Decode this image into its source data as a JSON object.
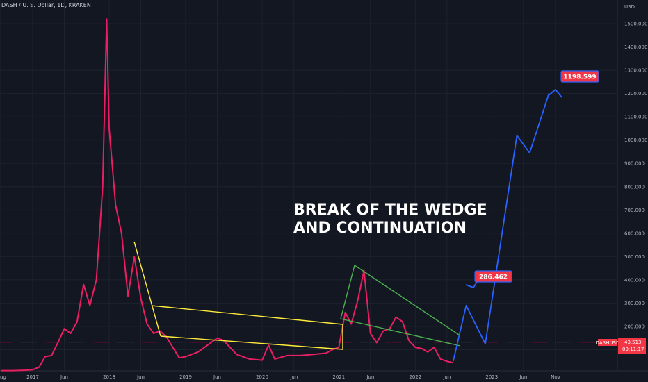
{
  "header": {
    "symbol_title": "DASH / U. S. Dollar, 1D, KRAKEN"
  },
  "annotation": {
    "line1": "BREAK OF THE WEDGE",
    "line2": "AND CONTINUATION"
  },
  "badges": {
    "target1": "286.462",
    "target2": "1198.599"
  },
  "price_label": {
    "ticker": "DASHUSD",
    "price": "43.513",
    "countdown": "09:11:17"
  },
  "colors": {
    "background": "#131722",
    "price_line": "#e91e63",
    "wedge_yellow": "#ffeb3b",
    "wedge_green": "#4caf50",
    "projection_blue": "#2962ff",
    "badge_red": "#f23645"
  },
  "chart_data": {
    "type": "line",
    "title": "DASH / U. S. Dollar, 1D, KRAKEN",
    "ylabel": "USD",
    "ylim": [
      0,
      1500
    ],
    "y_ticks": [
      100,
      200,
      300,
      400,
      500,
      600,
      700,
      800,
      900,
      1000,
      1100,
      1200,
      1300,
      1400,
      1500
    ],
    "y_tick_labels": [
      "100.000",
      "200.000",
      "300.000",
      "400.000",
      "500.000",
      "600.000",
      "700.000",
      "800.000",
      "900.000",
      "1000.000",
      "1100.000",
      "1200.000",
      "1300.000",
      "1400.000",
      "1500.000"
    ],
    "x_tick_labels": [
      "ug",
      "2017",
      "Jun",
      "2018",
      "Jun",
      "2019",
      "Jun",
      "2020",
      "Jun",
      "2021",
      "Jun",
      "2022",
      "Jun",
      "2023",
      "Jun",
      "Nov"
    ],
    "grid": true,
    "series": [
      {
        "style": "line",
        "points": [
          [
            "2016-08",
            10
          ],
          [
            "2016-10",
            10
          ],
          [
            "2016-12",
            12
          ],
          [
            "2017-01",
            14
          ],
          [
            "2017-02",
            25
          ],
          [
            "2017-03",
            70
          ],
          [
            "2017-04",
            75
          ],
          [
            "2017-05",
            130
          ],
          [
            "2017-06",
            190
          ],
          [
            "2017-07",
            170
          ],
          [
            "2017-08",
            220
          ],
          [
            "2017-09",
            380
          ],
          [
            "2017-10",
            290
          ],
          [
            "2017-11",
            400
          ],
          [
            "2017-12",
            800
          ],
          [
            "2017-12-20",
            1520
          ],
          [
            "2018-01",
            1050
          ],
          [
            "2018-02",
            720
          ],
          [
            "2018-03",
            600
          ],
          [
            "2018-04",
            330
          ],
          [
            "2018-05",
            500
          ],
          [
            "2018-06",
            320
          ],
          [
            "2018-07",
            210
          ],
          [
            "2018-08",
            170
          ],
          [
            "2018-09",
            180
          ],
          [
            "2018-10",
            155
          ],
          [
            "2018-11",
            110
          ],
          [
            "2018-12",
            65
          ],
          [
            "2019-01",
            70
          ],
          [
            "2019-03",
            90
          ],
          [
            "2019-04",
            110
          ],
          [
            "2019-06",
            150
          ],
          [
            "2019-07",
            140
          ],
          [
            "2019-09",
            80
          ],
          [
            "2019-11",
            60
          ],
          [
            "2020-01",
            55
          ],
          [
            "2020-02",
            120
          ],
          [
            "2020-03",
            60
          ],
          [
            "2020-05",
            75
          ],
          [
            "2020-07",
            75
          ],
          [
            "2020-09",
            80
          ],
          [
            "2020-11",
            85
          ],
          [
            "2020-12",
            100
          ],
          [
            "2021-01",
            110
          ],
          [
            "2021-02",
            260
          ],
          [
            "2021-03",
            210
          ],
          [
            "2021-04",
            310
          ],
          [
            "2021-05",
            440
          ],
          [
            "2021-06",
            170
          ],
          [
            "2021-07",
            130
          ],
          [
            "2021-08",
            180
          ],
          [
            "2021-09",
            190
          ],
          [
            "2021-10",
            240
          ],
          [
            "2021-11",
            220
          ],
          [
            "2021-12",
            140
          ],
          [
            "2022-01",
            110
          ],
          [
            "2022-02",
            105
          ],
          [
            "2022-03",
            90
          ],
          [
            "2022-04",
            110
          ],
          [
            "2022-05",
            60
          ],
          [
            "2022-06",
            50
          ],
          [
            "2022-07",
            43.5
          ]
        ]
      },
      {
        "name": "projection",
        "style": "projection",
        "points": [
          [
            "2022-07",
            50
          ],
          [
            "2022-09",
            290
          ],
          [
            "2022-12",
            125
          ],
          [
            "2023-05",
            1020
          ],
          [
            "2023-07",
            945
          ],
          [
            "2023-10",
            1200
          ]
        ]
      }
    ],
    "annotations": [
      "BREAK OF THE WEDGE",
      "AND CONTINUATION"
    ],
    "last_price": 43.513,
    "targets": [
      286.462,
      1198.599
    ]
  }
}
